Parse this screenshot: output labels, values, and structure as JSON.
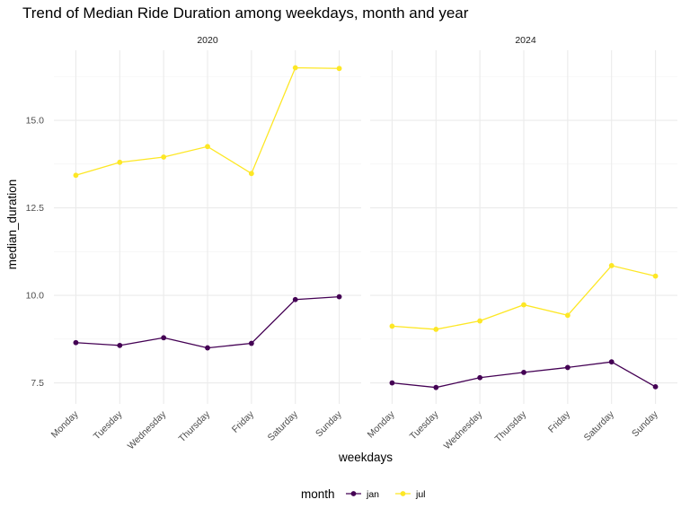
{
  "chart_data": {
    "type": "line",
    "title": "Trend of Median Ride Duration among weekdays, month and year",
    "xlabel": "weekdays",
    "ylabel": "median_duration",
    "categories": [
      "Monday",
      "Tuesday",
      "Wednesday",
      "Thursday",
      "Friday",
      "Saturday",
      "Sunday"
    ],
    "ylim": [
      6.9,
      17.0
    ],
    "yticks": [
      7.5,
      10.0,
      12.5,
      15.0
    ],
    "ytick_labels": [
      "7.5",
      "10.0",
      "12.5",
      "15.0"
    ],
    "grid": true,
    "legend": {
      "title": "month",
      "position": "bottom",
      "entries": [
        {
          "name": "jan",
          "color": "#440154"
        },
        {
          "name": "jul",
          "color": "#FDE725"
        }
      ]
    },
    "facets": [
      {
        "label": "2020",
        "series": [
          {
            "name": "jan",
            "color": "#440154",
            "values": [
              8.65,
              8.57,
              8.79,
              8.5,
              8.63,
              9.88,
              9.96
            ]
          },
          {
            "name": "jul",
            "color": "#FDE725",
            "values": [
              13.43,
              13.8,
              13.95,
              14.25,
              13.48,
              16.5,
              16.48
            ]
          }
        ]
      },
      {
        "label": "2024",
        "series": [
          {
            "name": "jan",
            "color": "#440154",
            "values": [
              7.5,
              7.37,
              7.65,
              7.8,
              7.94,
              8.1,
              7.39
            ]
          },
          {
            "name": "jul",
            "color": "#FDE725",
            "values": [
              9.12,
              9.03,
              9.27,
              9.73,
              9.43,
              10.85,
              10.55
            ]
          }
        ]
      }
    ]
  }
}
